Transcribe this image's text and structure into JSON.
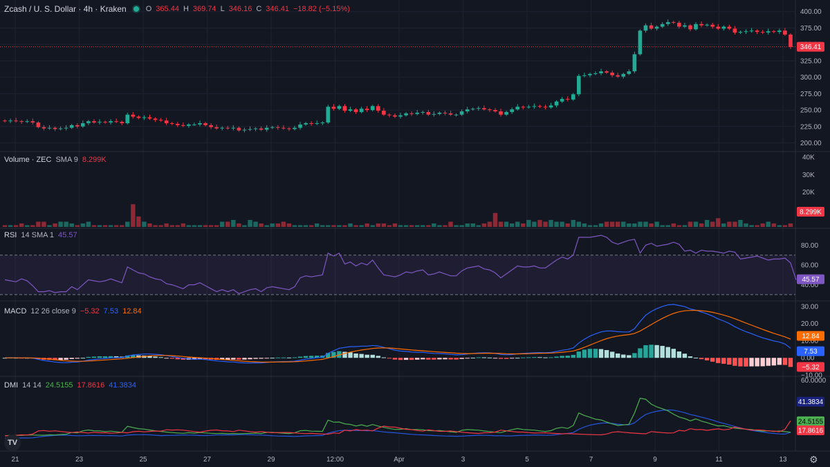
{
  "header": {
    "symbol": "Zcash / U. S. Dollar · 4h · Kraken",
    "o_label": "O",
    "o_val": "365.44",
    "h_label": "H",
    "h_val": "369.74",
    "l_label": "L",
    "l_val": "346.16",
    "c_label": "C",
    "c_val": "346.41",
    "change": "−18.82 (−5.15%)"
  },
  "volume_legend": {
    "title": "Volume · ZEC",
    "sma": "SMA 9",
    "value": "8.299K"
  },
  "rsi_legend": {
    "title": "RSI",
    "params": "14 SMA 1",
    "value": "45.57"
  },
  "macd_legend": {
    "title": "MACD",
    "params": "12 26 close 9",
    "hist": "−5.32",
    "macd": "7.53",
    "signal": "12.84"
  },
  "dmi_legend": {
    "title": "DMI",
    "params": "14 14",
    "plus": "24.5155",
    "minus": "17.8616",
    "adx": "41.3834"
  },
  "colors": {
    "up": "#22ab94",
    "down": "#f23645",
    "bg": "#131722",
    "rsi": "#7e57c2",
    "macd": "#2962ff",
    "signal": "#ff6d00",
    "adx": "#2962ff",
    "plus_di": "#4caf50",
    "minus_di": "#f23645"
  },
  "chart_data": [
    {
      "type": "candlestick",
      "title": "Zcash / U. S. Dollar · 4h · Kraken",
      "ylim": [
        190,
        405
      ],
      "y_ticks": [
        "400.00",
        "375.00",
        "350.00",
        "325.00",
        "300.00",
        "275.00",
        "250.00",
        "225.00",
        "200.00"
      ],
      "x_ticks": [
        "21",
        "23",
        "25",
        "27",
        "29",
        "12:00",
        "Apr",
        "3",
        "5",
        "7",
        "9",
        "11",
        "13"
      ],
      "last_price": "346.41",
      "closes": [
        233,
        234,
        233,
        232,
        233,
        231,
        224,
        222,
        223,
        221,
        222,
        223,
        227,
        225,
        230,
        233,
        231,
        232,
        231,
        233,
        232,
        230,
        243,
        240,
        238,
        239,
        237,
        235,
        234,
        230,
        229,
        227,
        226,
        228,
        228,
        230,
        227,
        224,
        222,
        223,
        222,
        223,
        219,
        220,
        221,
        222,
        220,
        223,
        224,
        223,
        222,
        221,
        223,
        228,
        230,
        229,
        230,
        231,
        255,
        252,
        256,
        249,
        251,
        247,
        252,
        250,
        256,
        249,
        243,
        242,
        240,
        242,
        245,
        244,
        246,
        247,
        243,
        244,
        246,
        245,
        243,
        243,
        248,
        251,
        252,
        253,
        251,
        250,
        248,
        243,
        247,
        251,
        255,
        254,
        255,
        256,
        255,
        254,
        257,
        263,
        267,
        266,
        274,
        302,
        303,
        305,
        306,
        309,
        307,
        303,
        301,
        305,
        309,
        335,
        371,
        379,
        374,
        377,
        381,
        384,
        383,
        377,
        379,
        373,
        381,
        379,
        380,
        377,
        374,
        377,
        374,
        368,
        369,
        370,
        371,
        369,
        368,
        370,
        369,
        371,
        365,
        346
      ],
      "opens": [
        234,
        233,
        234,
        233,
        232,
        233,
        231,
        224,
        222,
        223,
        221,
        222,
        223,
        227,
        225,
        230,
        233,
        231,
        232,
        231,
        233,
        232,
        230,
        243,
        240,
        238,
        239,
        237,
        235,
        234,
        230,
        229,
        227,
        226,
        228,
        228,
        230,
        227,
        224,
        222,
        223,
        222,
        223,
        219,
        220,
        221,
        222,
        220,
        223,
        224,
        223,
        222,
        221,
        223,
        228,
        230,
        229,
        230,
        231,
        255,
        252,
        256,
        249,
        251,
        247,
        252,
        250,
        256,
        249,
        243,
        242,
        240,
        242,
        245,
        244,
        246,
        247,
        243,
        244,
        246,
        245,
        243,
        243,
        248,
        251,
        252,
        253,
        251,
        250,
        248,
        243,
        247,
        251,
        255,
        254,
        255,
        256,
        255,
        254,
        257,
        263,
        267,
        266,
        274,
        302,
        303,
        305,
        306,
        309,
        307,
        303,
        301,
        305,
        309,
        335,
        371,
        379,
        374,
        377,
        381,
        384,
        383,
        377,
        379,
        373,
        381,
        379,
        380,
        377,
        374,
        377,
        374,
        368,
        369,
        370,
        371,
        369,
        368,
        370,
        369,
        371,
        365
      ]
    },
    {
      "type": "bar",
      "title": "Volume · ZEC SMA 9",
      "y_ticks": [
        "40K",
        "30K",
        "20K",
        "10K"
      ],
      "last_value": "8.299K",
      "values": [
        1,
        1,
        1,
        2,
        1,
        1,
        3,
        3,
        1,
        2,
        3,
        3,
        2,
        1,
        2,
        3,
        1,
        1,
        1,
        1,
        1,
        1,
        3,
        13,
        6,
        3,
        2,
        1,
        1,
        2,
        1,
        1,
        2,
        1,
        1,
        1,
        1,
        1,
        1,
        3,
        3,
        4,
        2,
        1,
        4,
        3,
        2,
        1,
        2,
        2,
        3,
        2,
        1,
        1,
        1,
        1,
        2,
        1,
        1,
        1,
        1,
        1,
        2,
        1,
        1,
        2,
        1,
        2,
        2,
        1,
        2,
        1,
        1,
        1,
        1,
        1,
        1,
        2,
        1,
        1,
        3,
        1,
        1,
        2,
        2,
        1,
        2,
        3,
        8,
        3,
        3,
        2,
        3,
        2,
        4,
        3,
        4,
        3,
        4,
        3,
        3,
        2,
        4,
        3,
        2,
        1,
        1,
        2,
        3,
        3,
        3,
        3,
        2,
        2,
        3,
        3,
        2,
        3,
        1,
        1,
        2,
        1,
        1,
        3,
        3,
        2,
        4,
        3,
        5,
        2,
        3,
        3,
        4,
        2,
        1,
        1,
        2,
        3,
        2,
        1,
        1,
        2
      ]
    },
    {
      "type": "line",
      "title": "RSI 14 SMA 1",
      "y_ticks": [
        "80.00",
        "60.00",
        "40.00"
      ],
      "last_value": "45.57",
      "values": [
        45,
        44,
        43,
        46,
        44,
        39,
        33,
        33,
        34,
        32,
        33,
        33,
        38,
        35,
        40,
        45,
        44,
        43,
        44,
        46,
        44,
        42,
        58,
        55,
        52,
        51,
        48,
        46,
        45,
        41,
        40,
        38,
        36,
        40,
        40,
        42,
        39,
        36,
        33,
        35,
        33,
        35,
        31,
        33,
        35,
        36,
        33,
        37,
        38,
        37,
        36,
        35,
        38,
        47,
        49,
        48,
        49,
        50,
        72,
        69,
        72,
        61,
        63,
        59,
        62,
        60,
        65,
        57,
        50,
        49,
        48,
        50,
        53,
        52,
        54,
        55,
        50,
        51,
        53,
        51,
        49,
        49,
        54,
        57,
        58,
        59,
        56,
        55,
        52,
        47,
        51,
        55,
        59,
        58,
        58,
        59,
        57,
        57,
        61,
        65,
        68,
        66,
        70,
        88,
        88,
        88,
        89,
        90,
        88,
        83,
        81,
        83,
        85,
        86,
        72,
        80,
        82,
        79,
        80,
        81,
        83,
        81,
        74,
        75,
        72,
        75,
        74,
        74,
        73,
        72,
        74,
        73,
        66,
        67,
        68,
        69,
        67,
        65,
        66,
        66,
        67,
        62,
        45
      ]
    }
  ]
}
